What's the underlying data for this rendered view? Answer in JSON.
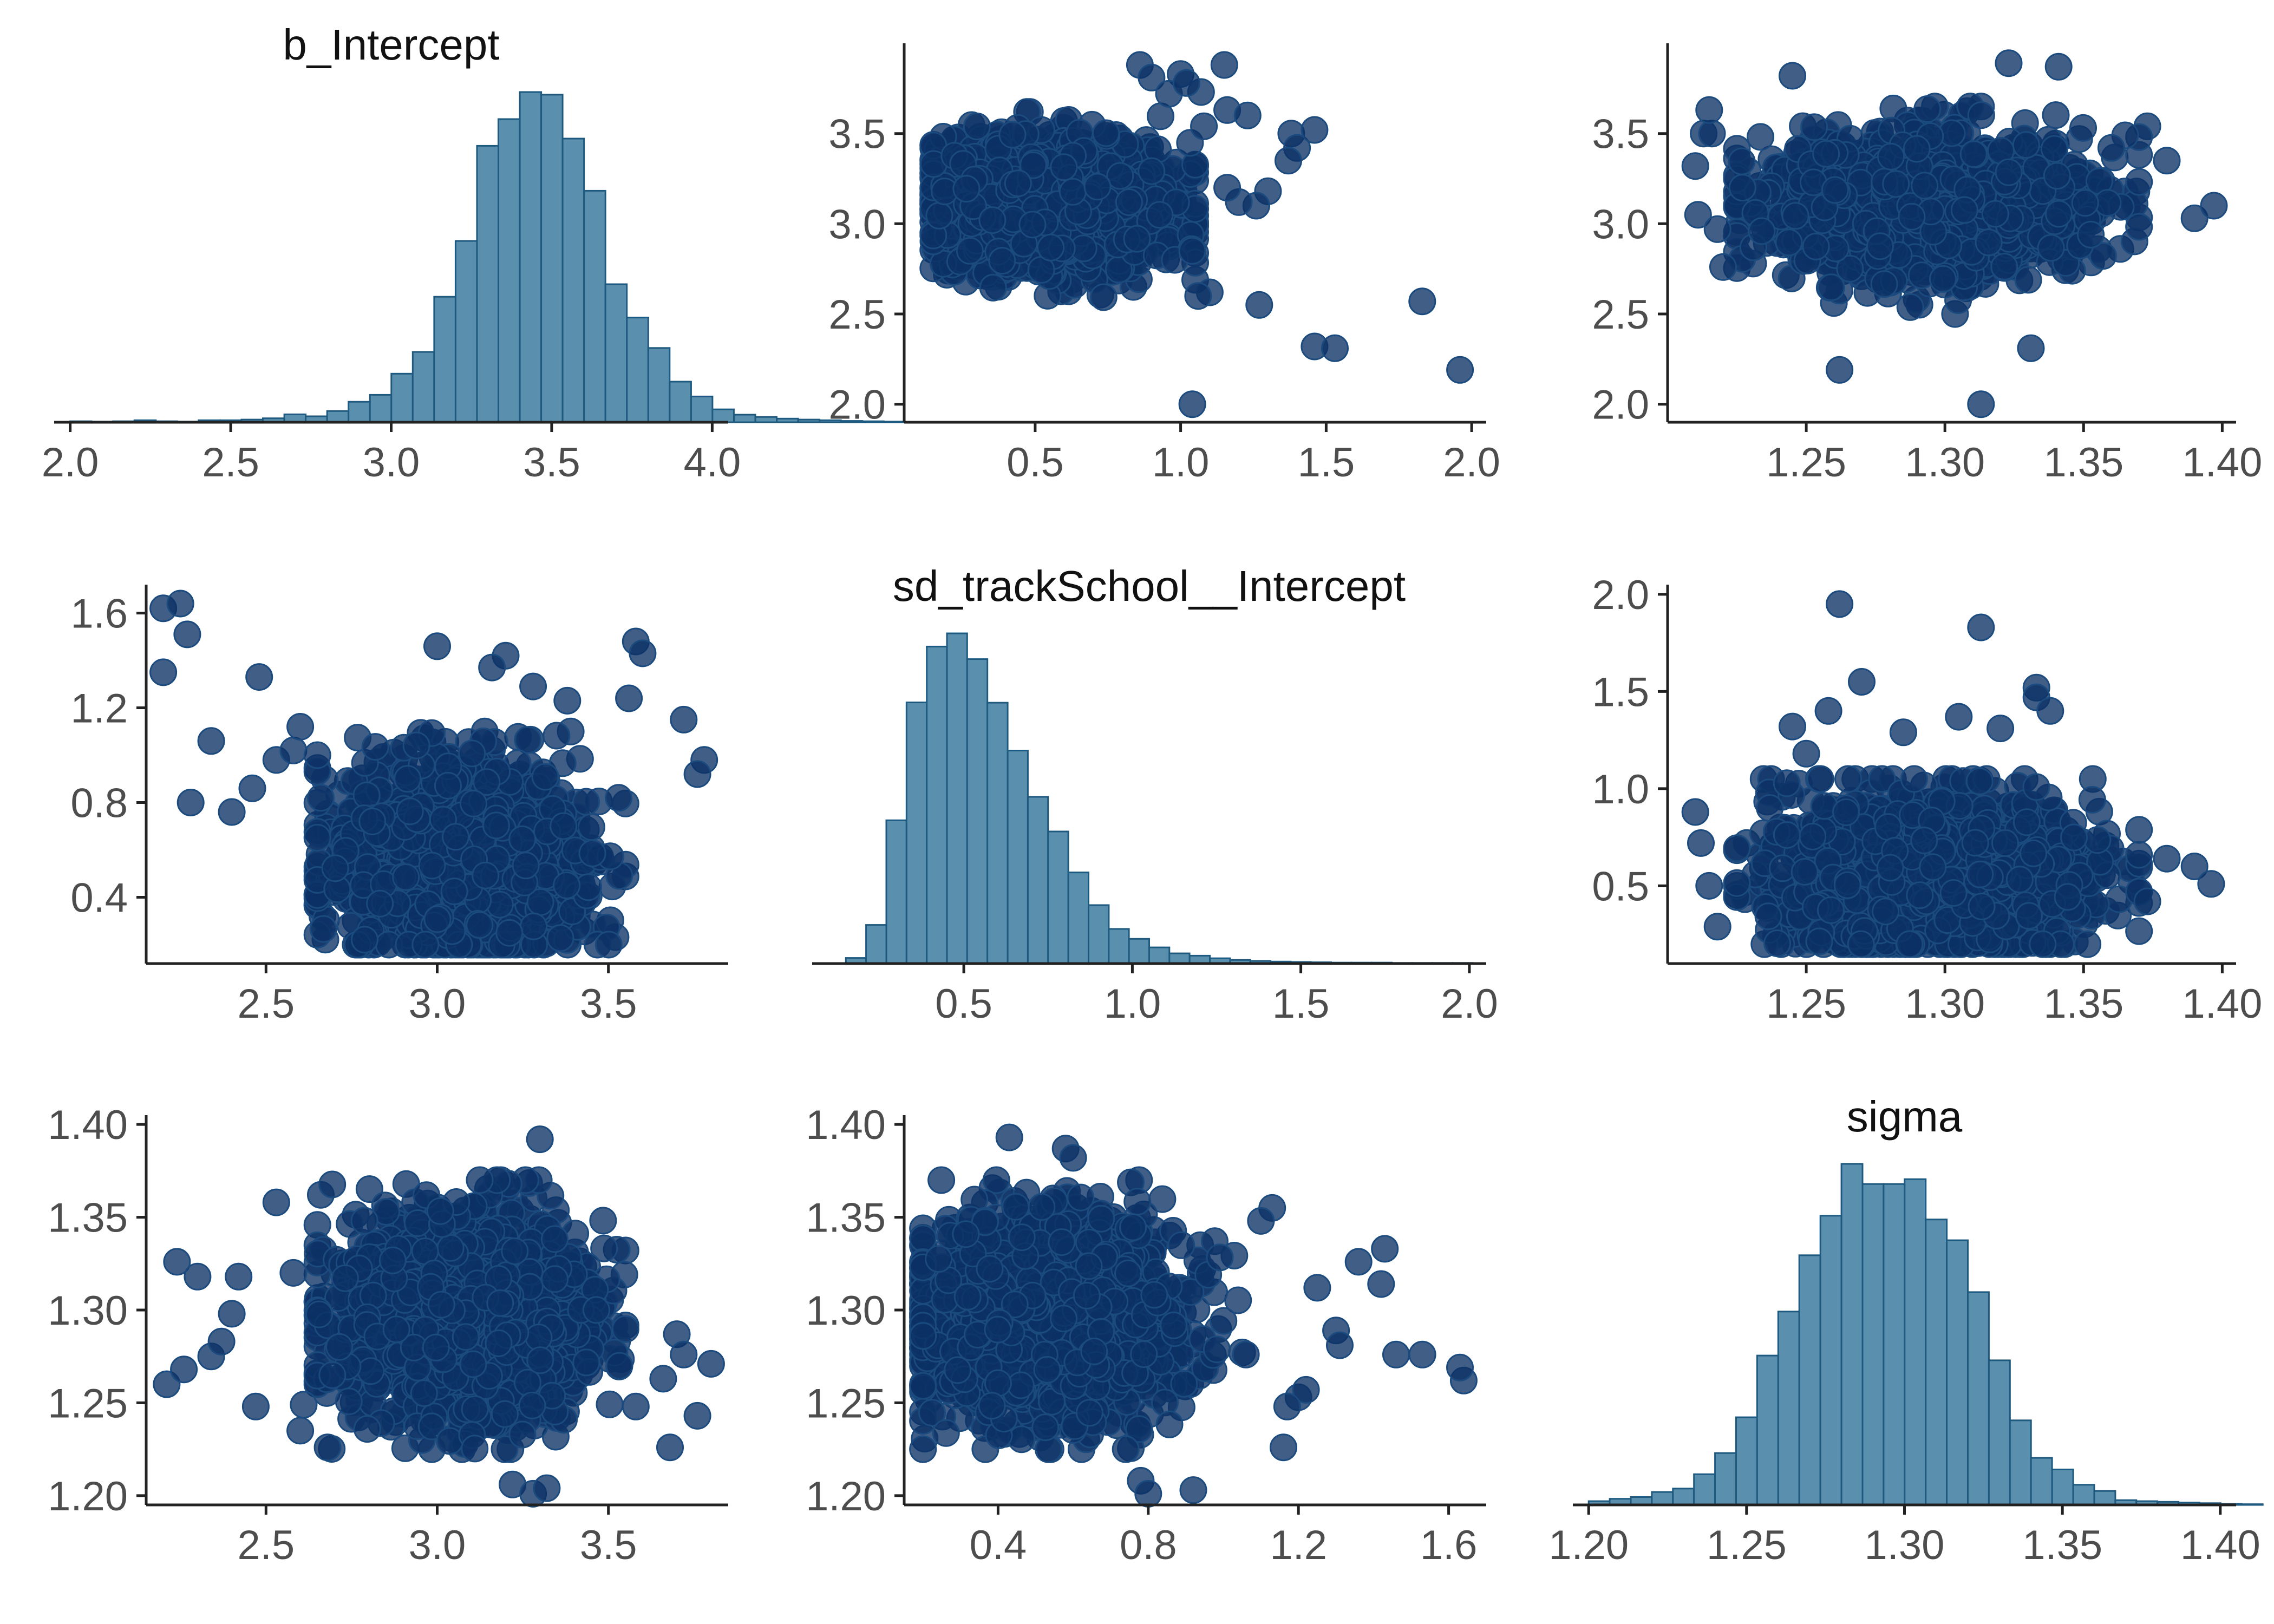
{
  "figure": {
    "background": "#ffffff",
    "hist_fill": "#5b8fae",
    "hist_stroke": "#1e5a80",
    "point_fill": "#0b3165",
    "point_stroke": "#1b4b7e",
    "point_opacity": 0.78
  },
  "chart_data": [
    {
      "id": "hist-b-intercept",
      "row": 0,
      "col": 0,
      "type": "bar",
      "title": "b_Intercept",
      "xlim": [
        1.95,
        4.05
      ],
      "ylim": [
        0,
        1
      ],
      "xticks": [
        "2.0",
        "2.5",
        "3.0",
        "3.5",
        "4.0"
      ],
      "yticks": [],
      "bins": {
        "start": 2.0,
        "width": 0.0667,
        "values": [
          0.003,
          0.002,
          0.003,
          0.006,
          0.003,
          0.002,
          0.006,
          0.006,
          0.008,
          0.012,
          0.024,
          0.018,
          0.034,
          0.062,
          0.083,
          0.147,
          0.213,
          0.38,
          0.549,
          0.837,
          0.918,
          1.0,
          0.992,
          0.859,
          0.701,
          0.418,
          0.317,
          0.225,
          0.123,
          0.078,
          0.039,
          0.023,
          0.016,
          0.011,
          0.008,
          0.006,
          0.004,
          0.003,
          0.002
        ]
      }
    },
    {
      "id": "scatter-sd-vs-intercept",
      "row": 0,
      "col": 1,
      "type": "scatter",
      "xlim": [
        0.05,
        2.05
      ],
      "ylim": [
        1.9,
        4.0
      ],
      "xticks": [
        "0.5",
        "1.0",
        "1.5",
        "2.0"
      ],
      "yticks": [
        "2.0",
        "2.5",
        "3.0",
        "3.5"
      ],
      "cloud": {
        "n": 1700,
        "x_mean": 0.55,
        "x_sd": 0.2,
        "x_min": 0.15,
        "x_max": 1.05,
        "y_mean": 3.1,
        "y_sd": 0.18,
        "y_min": 2.5,
        "y_max": 3.62
      },
      "outliers": {
        "x": [
          1.04,
          1.83,
          1.96,
          1.46,
          1.53,
          1.27,
          1.15,
          1.07,
          1.0,
          1.16,
          1.23,
          1.38,
          1.4,
          1.46,
          1.37,
          1.3,
          1.26,
          1.2,
          1.16,
          1.1,
          1.06,
          0.86,
          0.9,
          0.96,
          1.02,
          1.08,
          0.98,
          1.04
        ],
        "y": [
          2.0,
          2.57,
          2.19,
          2.32,
          2.31,
          2.55,
          3.88,
          3.73,
          3.83,
          3.63,
          3.6,
          3.5,
          3.42,
          3.52,
          3.35,
          3.18,
          3.1,
          3.12,
          3.2,
          2.62,
          2.6,
          3.88,
          3.81,
          3.72,
          3.78,
          3.54,
          2.8,
          2.85
        ]
      }
    },
    {
      "id": "scatter-sigma-vs-intercept",
      "row": 0,
      "col": 2,
      "type": "scatter",
      "xlim": [
        1.2,
        1.405
      ],
      "ylim": [
        1.9,
        4.0
      ],
      "xticks": [
        "1.25",
        "1.30",
        "1.35",
        "1.40"
      ],
      "yticks": [
        "2.0",
        "2.5",
        "3.0",
        "3.5"
      ],
      "cloud": {
        "n": 1800,
        "x_mean": 1.295,
        "x_sd": 0.027,
        "x_min": 1.225,
        "x_max": 1.37,
        "y_mean": 3.1,
        "y_sd": 0.18,
        "y_min": 2.5,
        "y_max": 3.65
      },
      "outliers": {
        "x": [
          1.21,
          1.213,
          1.211,
          1.216,
          1.218,
          1.22,
          1.215,
          1.39,
          1.397,
          1.262,
          1.313,
          1.331,
          1.38,
          1.373,
          1.37,
          1.365,
          1.245,
          1.36,
          1.227,
          1.323,
          1.341
        ],
        "y": [
          3.32,
          3.5,
          3.05,
          3.5,
          2.97,
          2.76,
          3.63,
          3.03,
          3.1,
          2.19,
          2.0,
          2.31,
          3.35,
          3.54,
          3.48,
          3.49,
          3.82,
          3.42,
          3.2,
          3.89,
          3.87
        ]
      }
    },
    {
      "id": "scatter-intercept-vs-sd",
      "row": 1,
      "col": 0,
      "type": "scatter",
      "xlim": [
        2.15,
        3.85
      ],
      "ylim": [
        0.12,
        1.72
      ],
      "xticks": [
        "2.5",
        "3.0",
        "3.5"
      ],
      "yticks": [
        "0.4",
        "0.8",
        "1.2",
        "1.6"
      ],
      "cloud": {
        "n": 1700,
        "x_mean": 3.08,
        "x_sd": 0.18,
        "x_min": 2.65,
        "x_max": 3.55,
        "y_mean": 0.55,
        "y_sd": 0.2,
        "y_min": 0.2,
        "y_max": 1.1
      },
      "outliers": {
        "x": [
          2.2,
          2.2,
          2.25,
          2.27,
          2.28,
          2.34,
          2.4,
          2.46,
          2.48,
          2.53,
          2.58,
          2.6,
          2.65,
          2.66,
          3.0,
          3.2,
          3.58,
          3.6,
          3.56,
          3.72,
          3.78,
          3.76,
          3.53,
          3.16,
          3.28,
          3.38
        ],
        "y": [
          1.62,
          1.35,
          1.64,
          1.51,
          0.8,
          1.06,
          0.76,
          0.86,
          1.33,
          0.98,
          1.02,
          1.12,
          1.0,
          0.82,
          1.46,
          1.42,
          1.48,
          1.43,
          1.24,
          1.15,
          0.98,
          0.92,
          0.82,
          1.37,
          1.29,
          1.23
        ]
      }
    },
    {
      "id": "hist-sd-trackschool",
      "row": 1,
      "col": 1,
      "type": "bar",
      "title": "sd_trackSchool__Intercept",
      "xlim": [
        0.05,
        2.05
      ],
      "ylim": [
        0,
        1
      ],
      "xticks": [
        "0.5",
        "1.0",
        "1.5",
        "2.0"
      ],
      "yticks": [],
      "bins": {
        "start": 0.15,
        "width": 0.06,
        "values": [
          0.017,
          0.117,
          0.434,
          0.791,
          0.96,
          1.0,
          0.922,
          0.79,
          0.645,
          0.505,
          0.4,
          0.276,
          0.177,
          0.105,
          0.075,
          0.049,
          0.031,
          0.024,
          0.016,
          0.011,
          0.008,
          0.006,
          0.005,
          0.004,
          0.003,
          0.003,
          0.003,
          0.002,
          0.002,
          0.002,
          0.002
        ]
      }
    },
    {
      "id": "scatter-sigma-vs-sd",
      "row": 1,
      "col": 2,
      "type": "scatter",
      "xlim": [
        1.2,
        1.405
      ],
      "ylim": [
        0.1,
        2.05
      ],
      "xticks": [
        "1.25",
        "1.30",
        "1.35",
        "1.40"
      ],
      "yticks": [
        "0.5",
        "1.0",
        "1.5",
        "2.0"
      ],
      "cloud": {
        "n": 1800,
        "x_mean": 1.295,
        "x_sd": 0.027,
        "x_min": 1.225,
        "x_max": 1.37,
        "y_mean": 0.55,
        "y_sd": 0.2,
        "y_min": 0.2,
        "y_max": 1.05
      },
      "outliers": {
        "x": [
          1.262,
          1.313,
          1.333,
          1.333,
          1.27,
          1.338,
          1.258,
          1.245,
          1.25,
          1.21,
          1.212,
          1.215,
          1.218,
          1.39,
          1.396,
          1.38,
          1.373,
          1.37,
          1.285,
          1.305,
          1.32
        ],
        "y": [
          1.95,
          1.83,
          1.52,
          1.47,
          1.55,
          1.4,
          1.4,
          1.32,
          1.18,
          0.88,
          0.72,
          0.5,
          0.29,
          0.6,
          0.51,
          0.64,
          0.42,
          0.66,
          1.29,
          1.37,
          1.31
        ]
      }
    },
    {
      "id": "scatter-intercept-vs-sigma",
      "row": 2,
      "col": 0,
      "type": "scatter",
      "xlim": [
        2.15,
        3.85
      ],
      "ylim": [
        1.195,
        1.405
      ],
      "xticks": [
        "2.5",
        "3.0",
        "3.5"
      ],
      "yticks": [
        "1.20",
        "1.25",
        "1.30",
        "1.35",
        "1.40"
      ],
      "cloud": {
        "n": 1700,
        "x_mean": 3.08,
        "x_sd": 0.18,
        "x_min": 2.65,
        "x_max": 3.55,
        "y_mean": 1.295,
        "y_sd": 0.027,
        "y_min": 1.225,
        "y_max": 1.37
      },
      "outliers": {
        "x": [
          2.21,
          2.24,
          2.26,
          2.3,
          2.34,
          2.37,
          2.4,
          2.42,
          2.47,
          2.53,
          2.58,
          2.61,
          2.6,
          2.68,
          3.3,
          3.22,
          3.28,
          3.32,
          3.58,
          3.66,
          3.7,
          3.76,
          3.68,
          3.8,
          3.72
        ],
        "y": [
          1.26,
          1.326,
          1.268,
          1.318,
          1.275,
          1.283,
          1.298,
          1.318,
          1.248,
          1.358,
          1.32,
          1.249,
          1.235,
          1.226,
          1.392,
          1.206,
          1.201,
          1.204,
          1.248,
          1.263,
          1.287,
          1.243,
          1.226,
          1.271,
          1.276
        ]
      }
    },
    {
      "id": "scatter-sd-vs-sigma",
      "row": 2,
      "col": 1,
      "type": "scatter",
      "xlim": [
        0.15,
        1.7
      ],
      "ylim": [
        1.195,
        1.405
      ],
      "xticks": [
        "0.4",
        "0.8",
        "1.2",
        "1.6"
      ],
      "yticks": [
        "1.20",
        "1.25",
        "1.30",
        "1.35",
        "1.40"
      ],
      "cloud": {
        "n": 1700,
        "x_mean": 0.52,
        "x_sd": 0.18,
        "x_min": 0.2,
        "x_max": 1.05,
        "y_mean": 1.295,
        "y_sd": 0.027,
        "y_min": 1.225,
        "y_max": 1.37
      },
      "outliers": {
        "x": [
          1.64,
          1.63,
          1.53,
          1.46,
          1.42,
          1.43,
          1.36,
          1.3,
          1.31,
          1.2,
          1.16,
          1.22,
          1.13,
          1.17,
          0.92,
          0.78,
          0.8,
          0.43,
          0.58,
          0.6,
          1.25,
          1.1,
          1.06
        ],
        "y": [
          1.262,
          1.269,
          1.276,
          1.276,
          1.314,
          1.333,
          1.326,
          1.289,
          1.281,
          1.253,
          1.226,
          1.257,
          1.355,
          1.248,
          1.203,
          1.208,
          1.201,
          1.393,
          1.387,
          1.382,
          1.312,
          1.348,
          1.276
        ]
      }
    },
    {
      "id": "hist-sigma",
      "row": 2,
      "col": 2,
      "type": "bar",
      "title": "sigma",
      "xlim": [
        1.195,
        1.405
      ],
      "ylim": [
        0,
        1
      ],
      "xticks": [
        "1.20",
        "1.25",
        "1.30",
        "1.35",
        "1.40"
      ],
      "yticks": [],
      "bins": {
        "start": 1.2,
        "width": 0.00667,
        "values": [
          0.011,
          0.018,
          0.023,
          0.038,
          0.048,
          0.09,
          0.152,
          0.257,
          0.438,
          0.567,
          0.732,
          0.848,
          1.0,
          0.941,
          0.941,
          0.955,
          0.837,
          0.776,
          0.624,
          0.424,
          0.248,
          0.138,
          0.104,
          0.059,
          0.041,
          0.014,
          0.011,
          0.009,
          0.007,
          0.005,
          0.003,
          0.002
        ]
      }
    }
  ]
}
